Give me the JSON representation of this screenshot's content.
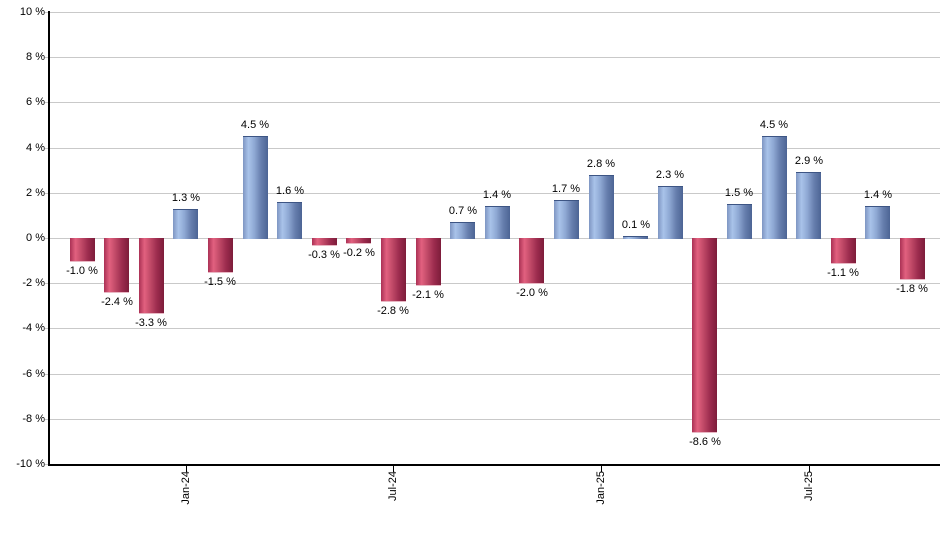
{
  "chart_data": {
    "type": "bar",
    "title": "",
    "xlabel": "",
    "ylabel": "",
    "ylim": [
      -10,
      10
    ],
    "y_tick_step": 2,
    "grid": true,
    "legend": "none",
    "y_tick_labels": [
      "10 %",
      "8 %",
      "6 %",
      "4 %",
      "2 %",
      "0 %",
      "-2 %",
      "-4 %",
      "-6 %",
      "-8 %",
      "-10 %"
    ],
    "x_ticks": [
      {
        "label": "Jan-24",
        "bar_index": 3
      },
      {
        "label": "Jul-24",
        "bar_index": 9
      },
      {
        "label": "Jan-25",
        "bar_index": 15
      },
      {
        "label": "Jul-25",
        "bar_index": 21
      }
    ],
    "bars": [
      {
        "value": -1.0,
        "label": "-1.0 %"
      },
      {
        "value": -2.4,
        "label": "-2.4 %"
      },
      {
        "value": -3.3,
        "label": "-3.3 %"
      },
      {
        "value": 1.3,
        "label": "1.3 %"
      },
      {
        "value": -1.5,
        "label": "-1.5 %"
      },
      {
        "value": 4.5,
        "label": "4.5 %"
      },
      {
        "value": 1.6,
        "label": "1.6 %"
      },
      {
        "value": -0.3,
        "label": "-0.3 %"
      },
      {
        "value": -0.2,
        "label": "-0.2 %"
      },
      {
        "value": -2.8,
        "label": "-2.8 %"
      },
      {
        "value": -2.1,
        "label": "-2.1 %"
      },
      {
        "value": 0.7,
        "label": "0.7 %"
      },
      {
        "value": 1.4,
        "label": "1.4 %"
      },
      {
        "value": -2.0,
        "label": "-2.0 %"
      },
      {
        "value": 1.7,
        "label": "1.7 %"
      },
      {
        "value": 2.8,
        "label": "2.8 %"
      },
      {
        "value": 0.1,
        "label": "0.1 %"
      },
      {
        "value": 2.3,
        "label": "2.3 %"
      },
      {
        "value": -8.6,
        "label": "-8.6 %"
      },
      {
        "value": 1.5,
        "label": "1.5 %"
      },
      {
        "value": 4.5,
        "label": "4.5 %"
      },
      {
        "value": 2.9,
        "label": "2.9 %"
      },
      {
        "value": -1.1,
        "label": "-1.1 %"
      },
      {
        "value": 1.4,
        "label": "1.4 %"
      },
      {
        "value": -1.8,
        "label": "-1.8 %"
      }
    ],
    "colors": {
      "positive_fill_light": "#a9c3ea",
      "positive_fill_dark": "#4c6494",
      "negative_fill_light": "#e2617f",
      "negative_fill_dark": "#7d1c3a",
      "gridline": "#c9c9c9",
      "axis": "#000000",
      "label_text": "#000000",
      "background": "#ffffff"
    }
  }
}
